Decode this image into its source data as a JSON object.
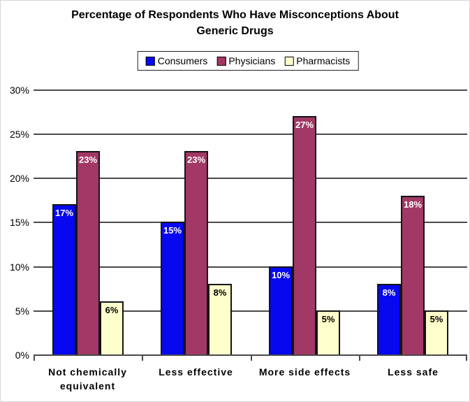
{
  "title_lines": [
    "Percentage of Respondents Who Have Misconceptions About",
    "Generic Drugs"
  ],
  "legend": {
    "items": [
      {
        "label": "Consumers",
        "color": "#0808F0"
      },
      {
        "label": "Physicians",
        "color": "#A13866"
      },
      {
        "label": "Pharmacists",
        "color": "#FFFFCC"
      }
    ]
  },
  "colors": {
    "gridline": "#4a4a4a",
    "bar_border": "#141414",
    "background": "#ffffff",
    "text": "#000000"
  },
  "chart_data": {
    "type": "bar",
    "title": "Percentage of Respondents Who Have Misconceptions About Generic Drugs",
    "categories": [
      "Not chemically equivalent",
      "Less effective",
      "More side effects",
      "Less safe"
    ],
    "series": [
      {
        "name": "Consumers",
        "color": "#0808F0",
        "label_color": "#FFFFFF",
        "values": [
          17,
          15,
          10,
          8
        ]
      },
      {
        "name": "Physicians",
        "color": "#A13866",
        "label_color": "#FFFFFF",
        "values": [
          23,
          23,
          27,
          18
        ]
      },
      {
        "name": "Pharmacists",
        "color": "#FFFFCC",
        "label_color": "#000000",
        "values": [
          6,
          8,
          5,
          5
        ]
      }
    ],
    "data_labels": [
      [
        "17%",
        "15%",
        "10%",
        "8%"
      ],
      [
        "23%",
        "23%",
        "27%",
        "18%"
      ],
      [
        "6%",
        "8%",
        "5%",
        "5%"
      ]
    ],
    "xlabel": "",
    "ylabel": "",
    "y_axis": {
      "min": 0,
      "max": 30,
      "step": 5,
      "tick_labels": [
        "0%",
        "5%",
        "10%",
        "15%",
        "20%",
        "25%",
        "30%"
      ]
    },
    "grid": true,
    "legend_position": "top-center"
  }
}
